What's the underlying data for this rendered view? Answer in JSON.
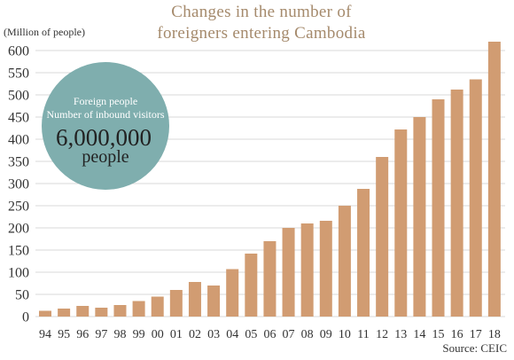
{
  "title_line1": "Changes in the number of",
  "title_line2": "foreigners entering Cambodia",
  "ylabel": "(Million of people)",
  "source": "Source: CEIC",
  "callout": {
    "line1": "Foreign people",
    "line2": "Number of inbound visitors",
    "value": "6,000,000",
    "unit": "people"
  },
  "colors": {
    "bar": "#d19c72",
    "circle": "#7faeae",
    "grid": "#d9d9d9",
    "title": "#a58a6c"
  },
  "chart_data": {
    "type": "bar",
    "categories": [
      "94",
      "95",
      "96",
      "97",
      "98",
      "99",
      "00",
      "01",
      "02",
      "03",
      "04",
      "05",
      "06",
      "07",
      "08",
      "09",
      "10",
      "11",
      "12",
      "13",
      "14",
      "15",
      "16",
      "17",
      "18"
    ],
    "values": [
      13,
      18,
      24,
      20,
      26,
      35,
      45,
      60,
      78,
      70,
      107,
      142,
      170,
      200,
      210,
      216,
      250,
      288,
      360,
      422,
      450,
      490,
      512,
      535,
      620
    ],
    "ylim": [
      0,
      600
    ],
    "yticks": [
      0,
      50,
      100,
      150,
      200,
      250,
      300,
      350,
      400,
      450,
      500,
      550,
      600
    ],
    "grid": true
  }
}
